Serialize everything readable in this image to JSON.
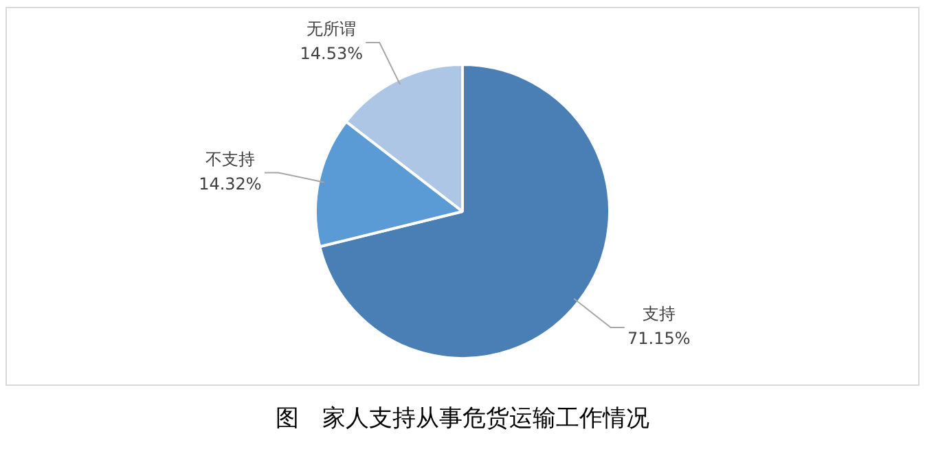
{
  "chart_data": {
    "type": "pie",
    "title": "图　家人支持从事危货运输工作情况",
    "categories": [
      "支持",
      "不支持",
      "无所谓"
    ],
    "values": [
      71.15,
      14.32,
      14.53
    ],
    "value_labels": [
      "71.15%",
      "14.32%",
      "14.53%"
    ],
    "colors": [
      "#4a7fb5",
      "#5b9bd5",
      "#adc6e6"
    ],
    "legend": false
  }
}
